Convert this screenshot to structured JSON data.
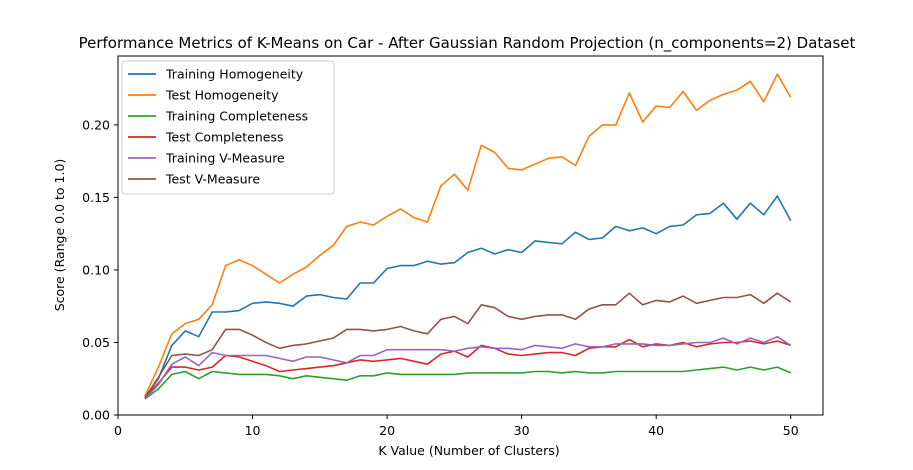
{
  "chart_data": {
    "type": "line",
    "title": "Performance Metrics of K-Means on Car - After Gaussian Random Projection (n_components=2) Dataset",
    "xlabel": "K Value (Number of Clusters)",
    "ylabel": "Score (Range 0.0 to 1.0)",
    "xlim": [
      0,
      52.4
    ],
    "ylim": [
      0.0,
      0.2475
    ],
    "x_ticks": [
      0,
      10,
      20,
      30,
      40,
      50
    ],
    "x_tick_labels": [
      "0",
      "10",
      "20",
      "30",
      "40",
      "50"
    ],
    "y_ticks": [
      0.0,
      0.05,
      0.1,
      0.15,
      0.2
    ],
    "y_tick_labels": [
      "0.00",
      "0.05",
      "0.10",
      "0.15",
      "0.20"
    ],
    "legend_position": "top-left",
    "grid": false,
    "x": [
      2,
      3,
      4,
      5,
      6,
      7,
      8,
      9,
      10,
      11,
      12,
      13,
      14,
      15,
      16,
      17,
      18,
      19,
      20,
      21,
      22,
      23,
      24,
      25,
      26,
      27,
      28,
      29,
      30,
      31,
      32,
      33,
      34,
      35,
      36,
      37,
      38,
      39,
      40,
      41,
      42,
      43,
      44,
      45,
      46,
      47,
      48,
      49,
      50
    ],
    "series": [
      {
        "name": "Training Homogeneity",
        "color": "#1f77b4",
        "values": [
          0.012,
          0.025,
          0.048,
          0.058,
          0.054,
          0.071,
          0.071,
          0.072,
          0.077,
          0.078,
          0.077,
          0.075,
          0.082,
          0.083,
          0.081,
          0.08,
          0.091,
          0.091,
          0.101,
          0.103,
          0.103,
          0.106,
          0.104,
          0.105,
          0.112,
          0.115,
          0.111,
          0.114,
          0.112,
          0.12,
          0.119,
          0.118,
          0.126,
          0.121,
          0.122,
          0.13,
          0.127,
          0.129,
          0.125,
          0.13,
          0.131,
          0.138,
          0.139,
          0.146,
          0.135,
          0.146,
          0.138,
          0.151,
          0.134
        ]
      },
      {
        "name": "Test Homogeneity",
        "color": "#ff7f0e",
        "values": [
          0.013,
          0.033,
          0.056,
          0.063,
          0.066,
          0.076,
          0.103,
          0.107,
          0.103,
          0.097,
          0.091,
          0.097,
          0.102,
          0.11,
          0.117,
          0.13,
          0.133,
          0.131,
          0.137,
          0.142,
          0.136,
          0.133,
          0.158,
          0.166,
          0.155,
          0.186,
          0.181,
          0.17,
          0.169,
          0.173,
          0.177,
          0.178,
          0.172,
          0.192,
          0.2,
          0.2,
          0.222,
          0.202,
          0.213,
          0.212,
          0.223,
          0.21,
          0.217,
          0.221,
          0.224,
          0.23,
          0.216,
          0.235,
          0.219
        ]
      },
      {
        "name": "Training Completeness",
        "color": "#2ca02c",
        "values": [
          0.011,
          0.018,
          0.028,
          0.03,
          0.025,
          0.03,
          0.029,
          0.028,
          0.028,
          0.028,
          0.027,
          0.025,
          0.027,
          0.026,
          0.025,
          0.024,
          0.027,
          0.027,
          0.029,
          0.028,
          0.028,
          0.028,
          0.028,
          0.028,
          0.029,
          0.029,
          0.029,
          0.029,
          0.029,
          0.03,
          0.03,
          0.029,
          0.03,
          0.029,
          0.029,
          0.03,
          0.03,
          0.03,
          0.03,
          0.03,
          0.03,
          0.031,
          0.032,
          0.033,
          0.031,
          0.033,
          0.031,
          0.033,
          0.029
        ]
      },
      {
        "name": "Test Completeness",
        "color": "#d62728",
        "values": [
          0.012,
          0.022,
          0.033,
          0.033,
          0.031,
          0.033,
          0.041,
          0.04,
          0.037,
          0.034,
          0.03,
          0.031,
          0.032,
          0.033,
          0.034,
          0.036,
          0.038,
          0.037,
          0.038,
          0.039,
          0.037,
          0.035,
          0.042,
          0.044,
          0.04,
          0.048,
          0.046,
          0.042,
          0.041,
          0.042,
          0.043,
          0.043,
          0.041,
          0.046,
          0.047,
          0.047,
          0.052,
          0.047,
          0.049,
          0.048,
          0.05,
          0.047,
          0.049,
          0.05,
          0.05,
          0.051,
          0.049,
          0.051,
          0.048
        ]
      },
      {
        "name": "Training V-Measure",
        "color": "#9467bd",
        "values": [
          0.011,
          0.021,
          0.035,
          0.04,
          0.034,
          0.043,
          0.041,
          0.041,
          0.041,
          0.041,
          0.039,
          0.037,
          0.04,
          0.04,
          0.038,
          0.036,
          0.041,
          0.041,
          0.045,
          0.045,
          0.045,
          0.045,
          0.045,
          0.044,
          0.046,
          0.047,
          0.046,
          0.046,
          0.045,
          0.048,
          0.047,
          0.046,
          0.049,
          0.047,
          0.047,
          0.049,
          0.049,
          0.049,
          0.048,
          0.048,
          0.049,
          0.05,
          0.05,
          0.053,
          0.049,
          0.053,
          0.05,
          0.054,
          0.048
        ]
      },
      {
        "name": "Test V-Measure",
        "color": "#8c564b",
        "values": [
          0.012,
          0.026,
          0.041,
          0.042,
          0.041,
          0.045,
          0.059,
          0.059,
          0.055,
          0.05,
          0.046,
          0.048,
          0.049,
          0.051,
          0.053,
          0.059,
          0.059,
          0.058,
          0.059,
          0.061,
          0.058,
          0.056,
          0.066,
          0.068,
          0.063,
          0.076,
          0.074,
          0.068,
          0.066,
          0.068,
          0.069,
          0.069,
          0.066,
          0.073,
          0.076,
          0.076,
          0.084,
          0.076,
          0.079,
          0.078,
          0.082,
          0.077,
          0.079,
          0.081,
          0.081,
          0.083,
          0.077,
          0.084,
          0.078
        ]
      }
    ]
  }
}
